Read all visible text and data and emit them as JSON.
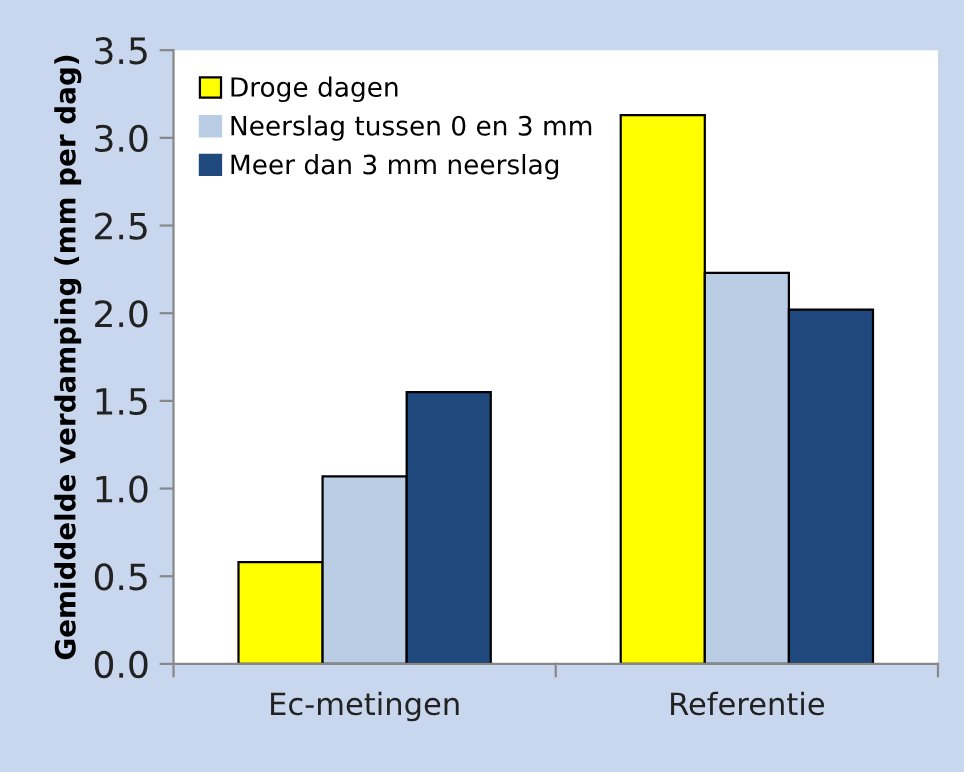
{
  "chart_data": {
    "type": "bar",
    "ylabel": "Gemiddelde verdamping (mm per dag)",
    "categories": [
      "Ec-metingen",
      "Referentie"
    ],
    "series": [
      {
        "name": "Droge dagen",
        "color": "#ffff00",
        "values": [
          0.58,
          3.13
        ]
      },
      {
        "name": "Neerslag tussen 0 en 3 mm",
        "color": "#b9cde5",
        "values": [
          1.07,
          2.23
        ]
      },
      {
        "name": "Meer dan 3 mm neerslag",
        "color": "#1f497d",
        "values": [
          1.55,
          2.02
        ]
      }
    ],
    "ylim": [
      0,
      3.5
    ],
    "yticks": [
      {
        "value": 0,
        "label": "0.0"
      },
      0.5,
      {
        "value": 1,
        "label": "1.0"
      },
      1.5,
      {
        "value": 2,
        "label": "2.0"
      },
      2.5,
      {
        "value": 3,
        "label": "3.0"
      },
      3.5
    ],
    "grid": false,
    "legend": "top left"
  }
}
